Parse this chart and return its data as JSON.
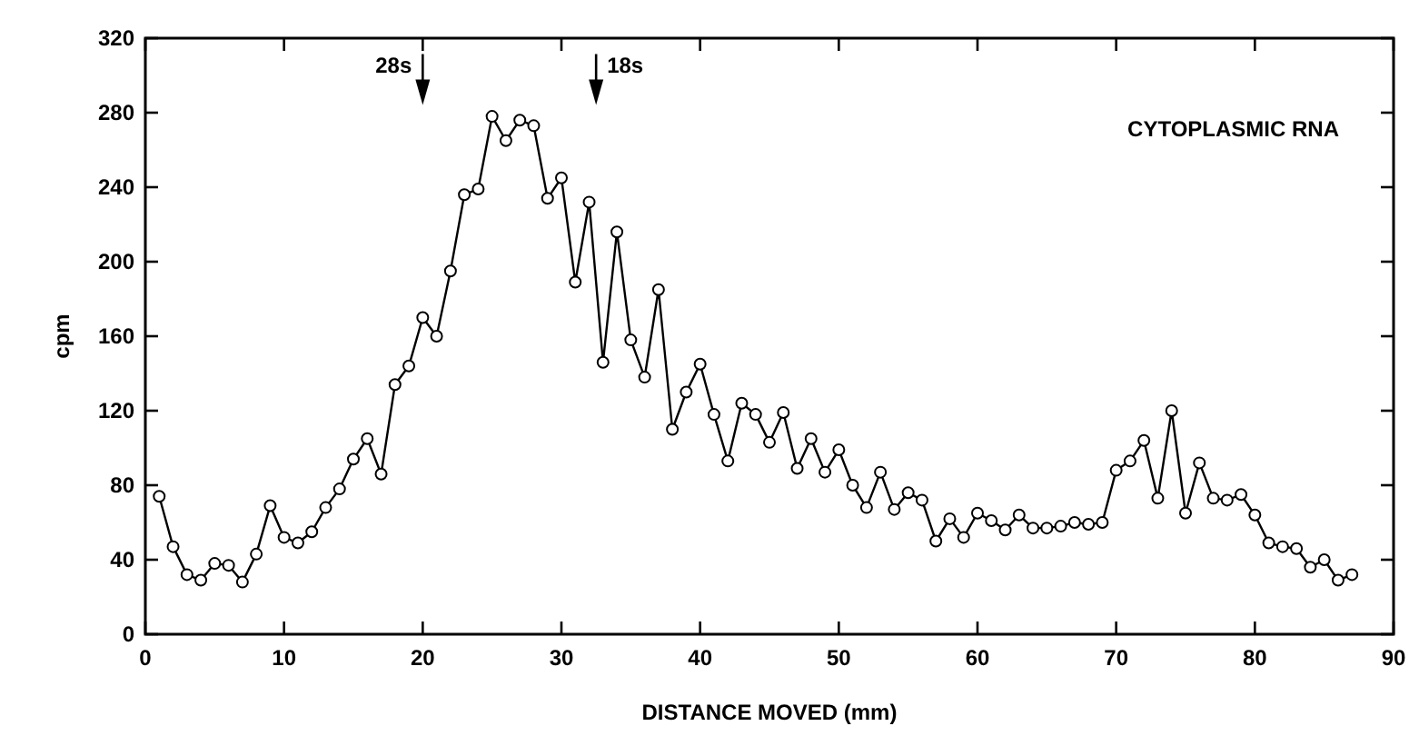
{
  "chart_data": {
    "type": "line",
    "title": "CYTOPLASMIC RNA",
    "xlabel": "DISTANCE MOVED (mm)",
    "ylabel": "cpm",
    "x": [
      1,
      2,
      3,
      4,
      5,
      6,
      7,
      8,
      9,
      10,
      11,
      12,
      13,
      14,
      15,
      16,
      17,
      18,
      19,
      20,
      21,
      22,
      23,
      24,
      25,
      26,
      27,
      28,
      29,
      30,
      31,
      32,
      33,
      34,
      35,
      36,
      37,
      38,
      39,
      40,
      41,
      42,
      43,
      44,
      45,
      46,
      47,
      48,
      49,
      50,
      51,
      52,
      53,
      54,
      55,
      56,
      57,
      58,
      59,
      60,
      61,
      62,
      63,
      64,
      65,
      66,
      67,
      68,
      69,
      70,
      71,
      72,
      73,
      74,
      75,
      76,
      77,
      78,
      79,
      80,
      81,
      82,
      83,
      84,
      85,
      86,
      87
    ],
    "series": [
      {
        "color": "#000000",
        "values": [
          74,
          47,
          32,
          29,
          38,
          37,
          28,
          43,
          69,
          52,
          49,
          55,
          68,
          78,
          94,
          105,
          86,
          134,
          144,
          170,
          160,
          195,
          236,
          239,
          278,
          265,
          276,
          273,
          234,
          245,
          189,
          232,
          146,
          216,
          158,
          138,
          185,
          110,
          130,
          145,
          118,
          93,
          124,
          118,
          103,
          119,
          89,
          105,
          87,
          99,
          80,
          68,
          87,
          67,
          76,
          72,
          50,
          62,
          52,
          65,
          61,
          56,
          64,
          57,
          57,
          58,
          60,
          59,
          60,
          88,
          93,
          104,
          73,
          120,
          65,
          92,
          73,
          72,
          75,
          64,
          49,
          47,
          46,
          36,
          40,
          29,
          32
        ]
      }
    ],
    "xlim": [
      0,
      90
    ],
    "xticks": [
      0,
      10,
      20,
      30,
      40,
      50,
      60,
      70,
      80,
      90
    ],
    "ylim": [
      0,
      320
    ],
    "yticks": [
      0,
      40,
      80,
      120,
      160,
      200,
      240,
      280,
      320
    ],
    "annotations": [
      {
        "text": "28s",
        "x": 20,
        "y": 290
      },
      {
        "text": "18s",
        "x": 32.5,
        "y": 290
      }
    ],
    "marker": "circle",
    "line_style": "solid",
    "grid": false
  }
}
